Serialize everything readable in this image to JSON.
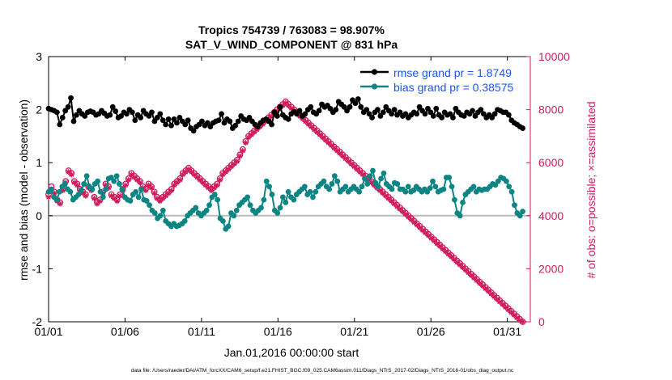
{
  "chart_data": {
    "type": "line",
    "title_line1": "Tropics 754739 / 763083 = 98.907%",
    "title_line2": "SAT_V_WIND_COMPONENT @ 831 hPa",
    "xlabel": "Jan.01,2016 00:00:00 start",
    "ylabel_left": "rmse and bias (model - observation)",
    "ylabel_right": "# of obs: o=possible; ×=assimilated",
    "footer": "data file: /Users/raeder/DAI/ATM_forcXX/CAM6_setup/f.e21.FHIST_BGC.f09_025.CAM6assim.011/Diags_NTrS_2017-02/Diags_NTrS_2016-01/obs_diag_output.nc",
    "x_ticks": [
      "01/01",
      "01/06",
      "01/11",
      "01/16",
      "01/21",
      "01/26",
      "01/31"
    ],
    "y_left_ticks": [
      "-2",
      "-1",
      "0",
      "1",
      "2",
      "3"
    ],
    "y_right_ticks": [
      "0",
      "2000",
      "4000",
      "6000",
      "8000",
      "10000"
    ],
    "x_range_days": [
      0,
      31.5
    ],
    "y_left_range": [
      -2,
      3
    ],
    "y_right_range": [
      0,
      10000
    ],
    "colors": {
      "rmse": "#000000",
      "bias": "#0d8584",
      "obs": "#d01c5c",
      "legend_text": "#1a55e6",
      "zero_line": "#bdbdbd",
      "right_axis": "#d01c5c"
    },
    "legend": {
      "placement": "top-right",
      "rmse_label": "rmse grand pr = 1.8749",
      "bias_label": "bias grand pr = 0.38575"
    },
    "series": [
      {
        "name": "rmse",
        "values": [
          2.02,
          2.0,
          1.98,
          1.95,
          1.72,
          1.85,
          1.98,
          2.05,
          2.22,
          1.78,
          1.9,
          1.98,
          1.92,
          1.88,
          1.95,
          1.97,
          1.95,
          1.9,
          1.92,
          1.98,
          1.93,
          1.88,
          1.9,
          2.05,
          1.97,
          1.85,
          1.88,
          1.95,
          1.92,
          2.0,
          1.95,
          1.8,
          1.9,
          1.85,
          1.98,
          1.92,
          1.88,
          1.95,
          1.78,
          1.85,
          1.92,
          1.8,
          1.72,
          1.82,
          1.7,
          1.82,
          1.75,
          1.85,
          1.78,
          1.72,
          1.8,
          1.65,
          1.6,
          1.68,
          1.72,
          1.78,
          1.7,
          1.75,
          1.68,
          1.75,
          1.78,
          1.8,
          1.92,
          1.75,
          1.82,
          1.78,
          1.65,
          1.7,
          1.78,
          1.88,
          1.82,
          1.8,
          1.85,
          1.78,
          1.72,
          1.68,
          1.75,
          1.8,
          1.82,
          1.78,
          1.72,
          1.95,
          1.88,
          2.05,
          1.9,
          1.85,
          1.82,
          1.92,
          1.96,
          1.92,
          1.98,
          1.88,
          1.92,
          2.0,
          2.05,
          1.95,
          1.92,
          1.98,
          2.1,
          2.05,
          2.08,
          2.02,
          1.95,
          2.0,
          2.15,
          2.1,
          2.05,
          1.98,
          2.05,
          2.18,
          2.12,
          2.2,
          2.05,
          1.95,
          2.0,
          1.92,
          1.85,
          1.95,
          2.0,
          1.88,
          1.95,
          2.05,
          1.98,
          1.92,
          2.0,
          1.9,
          1.95,
          1.88,
          1.92,
          1.85,
          1.9,
          1.95,
          1.92,
          2.05,
          1.98,
          1.92,
          2.02,
          1.95,
          1.88,
          2.02,
          1.9,
          1.85,
          1.95,
          1.9,
          1.92,
          1.85,
          2.02,
          1.95,
          1.9,
          1.88,
          1.95,
          1.92,
          1.98,
          1.88,
          1.95,
          2.0,
          1.92,
          1.85,
          1.9,
          1.85,
          1.92,
          2.0,
          1.98,
          1.95,
          1.95,
          1.9,
          1.8,
          1.75,
          1.72,
          1.68,
          1.65
        ]
      },
      {
        "name": "bias",
        "values": [
          0.45,
          0.5,
          0.35,
          0.3,
          0.45,
          0.55,
          0.6,
          0.5,
          0.45,
          0.3,
          0.35,
          0.4,
          0.48,
          0.6,
          0.75,
          0.55,
          0.5,
          0.6,
          0.65,
          0.45,
          0.35,
          0.5,
          0.7,
          0.72,
          0.65,
          0.75,
          0.6,
          0.5,
          0.35,
          0.3,
          0.28,
          0.4,
          0.45,
          0.35,
          0.5,
          0.3,
          0.28,
          0.2,
          0.1,
          0.05,
          -0.05,
          0.0,
          0.1,
          -0.1,
          -0.15,
          -0.2,
          -0.15,
          -0.2,
          -0.18,
          -0.15,
          -0.1,
          0.0,
          0.05,
          0.1,
          0.15,
          0.05,
          0.0,
          0.05,
          0.1,
          0.2,
          0.35,
          0.4,
          0.3,
          -0.05,
          -0.1,
          -0.25,
          -0.2,
          0.05,
          0.0,
          0.1,
          0.2,
          0.25,
          0.3,
          0.35,
          0.2,
          0.1,
          0.05,
          0.1,
          0.15,
          0.3,
          0.65,
          0.55,
          0.4,
          0.1,
          0.05,
          0.15,
          0.35,
          0.25,
          0.45,
          0.35,
          0.3,
          0.4,
          0.45,
          0.5,
          0.55,
          0.4,
          0.45,
          0.35,
          0.45,
          0.55,
          0.6,
          0.65,
          0.55,
          0.5,
          0.6,
          0.75,
          0.65,
          0.45,
          0.5,
          0.55,
          0.45,
          0.5,
          0.55,
          0.5,
          0.45,
          0.55,
          0.7,
          0.6,
          0.75,
          0.85,
          0.62,
          0.55,
          0.7,
          0.8,
          0.6,
          0.55,
          0.5,
          0.62,
          0.6,
          0.5,
          0.5,
          0.45,
          0.55,
          0.45,
          0.48,
          0.55,
          0.5,
          0.45,
          0.5,
          0.45,
          0.52,
          0.65,
          0.55,
          0.45,
          0.48,
          0.5,
          0.72,
          0.72,
          0.55,
          0.3,
          0.05,
          0.0,
          0.25,
          0.4,
          0.45,
          0.5,
          0.55,
          0.45,
          0.5,
          0.48,
          0.5,
          0.5,
          0.55,
          0.6,
          0.58,
          0.65,
          0.72,
          0.7,
          0.65,
          0.55,
          0.45,
          0.2,
          0.05,
          0.0,
          0.08
        ]
      },
      {
        "name": "obs_possible",
        "values": [
          4800,
          5100,
          4900,
          4600,
          4500,
          5000,
          5300,
          5700,
          5600,
          5300,
          5200,
          5000,
          4900,
          4800,
          5100,
          5000,
          4700,
          4500,
          4600,
          4900,
          5200,
          5100,
          4800,
          4700,
          4600,
          4800,
          5000,
          5200,
          5400,
          5600,
          5500,
          5400,
          5300,
          5100,
          5000,
          5200,
          5100,
          4900,
          4700,
          4600,
          4700,
          4800,
          4900,
          5000,
          5200,
          5300,
          5400,
          5600,
          5700,
          5800,
          5700,
          5600,
          5500,
          5400,
          5300,
          5200,
          5100,
          5000,
          5100,
          5200,
          5400,
          5600,
          5700,
          5800,
          5900,
          6000,
          6100,
          6300,
          6500,
          6800,
          7000,
          7100,
          7200,
          7300,
          7400,
          7500,
          7600,
          7700,
          7800,
          7900,
          8000,
          8100,
          8200,
          8300,
          8200,
          8100,
          8000,
          7900,
          7800,
          7700,
          7600,
          7500,
          7400,
          7300,
          7200,
          7100,
          7000,
          6900,
          6800,
          6700,
          6600,
          6500,
          6400,
          6300,
          6200,
          6100,
          6000,
          5900,
          5800,
          5700,
          5600,
          5500,
          5400,
          5300,
          5200,
          5100,
          5000,
          4900,
          4800,
          4700,
          4600,
          4500,
          4400,
          4300,
          4200,
          4100,
          4000,
          3900,
          3800,
          3700,
          3600,
          3500,
          3400,
          3300,
          3200,
          3100,
          3000,
          2900,
          2800,
          2700,
          2600,
          2500,
          2400,
          2300,
          2200,
          2100,
          2000,
          1900,
          1800,
          1700,
          1600,
          1500,
          1400,
          1300,
          1200,
          1100,
          1000,
          900,
          800,
          700,
          600,
          500,
          400,
          300,
          200,
          100,
          0
        ]
      },
      {
        "name": "obs_assimilated",
        "values": [
          4700,
          5000,
          4850,
          4550,
          4450,
          4950,
          5250,
          5650,
          5550,
          5250,
          5150,
          4950,
          4850,
          4750,
          5050,
          4950,
          4650,
          4450,
          4550,
          4850,
          5150,
          5050,
          4750,
          4650,
          4550,
          4750,
          4950,
          5150,
          5350,
          5550,
          5450,
          5350,
          5250,
          5050,
          4950,
          5150,
          5050,
          4850,
          4650,
          4550,
          4650,
          4750,
          4850,
          4950,
          5150,
          5250,
          5350,
          5550,
          5650,
          5750,
          5650,
          5550,
          5450,
          5350,
          5250,
          5150,
          5050,
          4950,
          5050,
          5150,
          5350,
          5550,
          5650,
          5750,
          5850,
          5950,
          6050,
          6250,
          6450,
          6750,
          6950,
          7050,
          7150,
          7250,
          7350,
          7450,
          7550,
          7650,
          7750,
          7850,
          7950,
          8050,
          8150,
          8250,
          8150,
          8050,
          7950,
          7850,
          7750,
          7650,
          7550,
          7450,
          7350,
          7250,
          7150,
          7050,
          6950,
          6850,
          6750,
          6650,
          6550,
          6450,
          6350,
          6250,
          6150,
          6050,
          5950,
          5850,
          5750,
          5650,
          5550,
          5450,
          5350,
          5250,
          5150,
          5050,
          4950,
          4850,
          4750,
          4650,
          4550,
          4450,
          4350,
          4250,
          4150,
          4050,
          3950,
          3850,
          3750,
          3650,
          3550,
          3450,
          3350,
          3250,
          3150,
          3050,
          2950,
          2850,
          2750,
          2650,
          2550,
          2450,
          2350,
          2250,
          2150,
          2050,
          1950,
          1850,
          1750,
          1650,
          1550,
          1450,
          1350,
          1250,
          1150,
          1050,
          950,
          850,
          750,
          650,
          550,
          450,
          350,
          250,
          150,
          50,
          0
        ]
      }
    ]
  }
}
